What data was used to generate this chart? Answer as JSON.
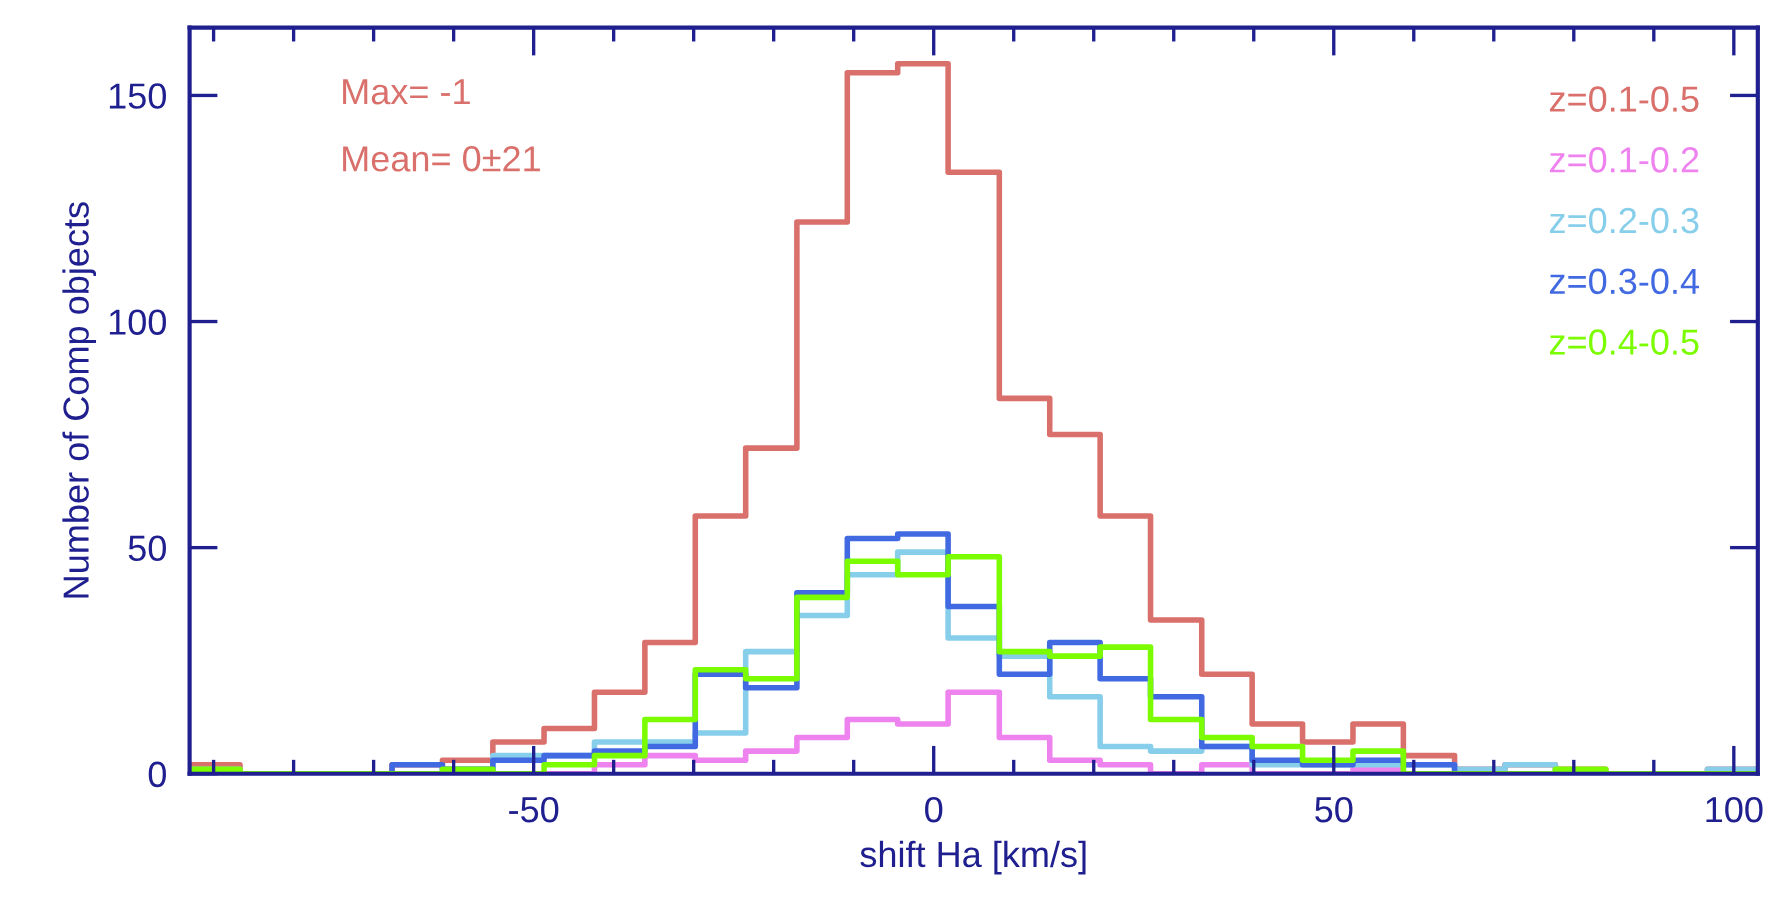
{
  "chart_data": {
    "type": "histogram",
    "xlabel": "shift Ha [km/s]",
    "ylabel": "Number of Comp objects",
    "annotations": [
      "Max= -1",
      "Mean= 0±21"
    ],
    "bins": [
      -93.0,
      -86.7,
      -80.4,
      -74.0,
      -67.7,
      -61.4,
      -55.1,
      -48.7,
      -42.4,
      -36.1,
      -29.8,
      -23.5,
      -17.1,
      -10.8,
      -4.5,
      1.8,
      8.2,
      14.5,
      20.8,
      27.1,
      33.5,
      39.8,
      46.1,
      52.4,
      58.7,
      65.1,
      71.4,
      77.7,
      84.0,
      90.4,
      96.7,
      103.0
    ],
    "series": [
      {
        "name": "z=0.1-0.5",
        "color": "#d9706b",
        "values": [
          2,
          0,
          0,
          0,
          2,
          3,
          7,
          10,
          18,
          29,
          57,
          72,
          122,
          155,
          157,
          133,
          83,
          75,
          57,
          34,
          22,
          11,
          7,
          11,
          4,
          1,
          2,
          1,
          0,
          0,
          1
        ]
      },
      {
        "name": "z=0.1-0.2",
        "color": "#ee82ee",
        "values": [
          0,
          0,
          0,
          0,
          0,
          0,
          0,
          0,
          2,
          4,
          3,
          5,
          8,
          12,
          11,
          18,
          8,
          3,
          2,
          0,
          2,
          0,
          0,
          1,
          0,
          0,
          0,
          0,
          0,
          0,
          0
        ]
      },
      {
        "name": "z=0.2-0.3",
        "color": "#87ceeb",
        "values": [
          1,
          0,
          0,
          0,
          0,
          1,
          4,
          4,
          7,
          7,
          9,
          27,
          35,
          44,
          49,
          30,
          26,
          17,
          6,
          5,
          6,
          2,
          2,
          2,
          2,
          1,
          2,
          0,
          0,
          0,
          1
        ]
      },
      {
        "name": "z=0.3-0.4",
        "color": "#4169e1",
        "values": [
          0,
          0,
          0,
          0,
          2,
          1,
          3,
          4,
          5,
          6,
          22,
          19,
          40,
          52,
          53,
          37,
          22,
          29,
          21,
          17,
          6,
          3,
          2,
          3,
          2,
          0,
          0,
          0,
          0,
          0,
          0
        ]
      },
      {
        "name": "z=0.4-0.5",
        "color": "#7cfc00",
        "values": [
          1,
          0,
          0,
          0,
          0,
          1,
          0,
          2,
          4,
          12,
          23,
          21,
          39,
          47,
          44,
          48,
          27,
          26,
          28,
          12,
          8,
          6,
          3,
          5,
          0,
          0,
          0,
          1,
          0,
          0,
          0
        ]
      }
    ],
    "xlim": [
      -93,
      103
    ],
    "ylim": [
      0,
      165
    ],
    "xticks": [
      {
        "value": -90,
        "label": null
      },
      {
        "value": -80,
        "label": null
      },
      {
        "value": -70,
        "label": null
      },
      {
        "value": -60,
        "label": null
      },
      -50,
      {
        "value": -40,
        "label": null
      },
      {
        "value": -30,
        "label": null
      },
      {
        "value": -20,
        "label": null
      },
      {
        "value": -10,
        "label": null
      },
      0,
      {
        "value": 10,
        "label": null
      },
      {
        "value": 20,
        "label": null
      },
      {
        "value": 30,
        "label": null
      },
      {
        "value": 40,
        "label": null
      },
      50,
      {
        "value": 60,
        "label": null
      },
      {
        "value": 70,
        "label": null
      },
      {
        "value": 80,
        "label": null
      },
      {
        "value": 90,
        "label": null
      },
      100
    ],
    "yticks": [
      0,
      50,
      100,
      150
    ],
    "legend": "top right"
  }
}
